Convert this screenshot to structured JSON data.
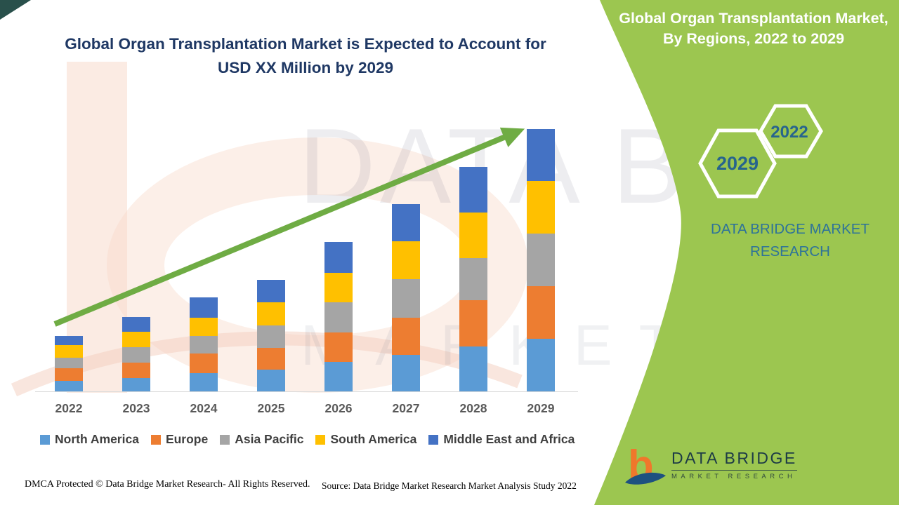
{
  "main_title": "Global Organ Transplantation Market is Expected to Account for USD XX Million by 2029",
  "sidebar": {
    "bg_color": "#9CC650",
    "title": "Global Organ Transplantation Market, By Regions, 2022 to 2029",
    "hexagons": [
      {
        "label": "2029"
      },
      {
        "label": "2022"
      }
    ],
    "brand_text": "DATA BRIDGE MARKET RESEARCH",
    "logo": {
      "name": "DATA BRIDGE",
      "subname": "MARKET RESEARCH"
    }
  },
  "watermark": {
    "line1": "DATA BRIDGE",
    "line2": "MARKET RESEARCH",
    "letter": "b"
  },
  "footer": {
    "dmca": "DMCA Protected © Data Bridge Market Research- All Rights Reserved.",
    "source": "Source: Data Bridge Market Research Market Analysis Study 2022"
  },
  "colors": {
    "sidebar_green": "#9CC650",
    "arrow_green": "#6FAC44",
    "title_navy": "#1F3864",
    "brand_teal": "#2E7399",
    "hex_year_blue": "#27648D",
    "logo_orange": "#F0772B",
    "logo_navy": "#1E5180",
    "axis_gray": "#D9D9D9",
    "xlabel_gray": "#595959",
    "legend_text_gray": "#3F3F3F"
  },
  "chart_data": {
    "type": "bar",
    "stacked": true,
    "title": "Global Organ Transplantation Market is Expected to Account for USD XX Million by 2029",
    "categories": [
      "2022",
      "2023",
      "2024",
      "2025",
      "2026",
      "2027",
      "2028",
      "2029"
    ],
    "series": [
      {
        "name": "North America",
        "color": "#5B9BD5",
        "values": [
          15,
          19,
          26,
          31,
          42,
          52,
          64,
          75
        ]
      },
      {
        "name": "Europe",
        "color": "#ED7D31",
        "values": [
          18,
          22,
          28,
          31,
          42,
          53,
          66,
          75
        ]
      },
      {
        "name": "Asia Pacific",
        "color": "#A5A5A5",
        "values": [
          15,
          22,
          25,
          32,
          43,
          55,
          60,
          75
        ]
      },
      {
        "name": "South America",
        "color": "#FFC000",
        "values": [
          18,
          22,
          26,
          33,
          42,
          54,
          65,
          75
        ]
      },
      {
        "name": "Middle East and Africa",
        "color": "#4472C4",
        "values": [
          13,
          21,
          29,
          32,
          44,
          53,
          65,
          74
        ]
      }
    ],
    "totals": [
      79,
      106,
      134,
      159,
      213,
      267,
      320,
      374
    ],
    "value_note": "relative units estimated from bar heights; y-axis is not labeled in the figure",
    "xlabel": "",
    "ylabel": "",
    "ylim": [
      0,
      400
    ],
    "grid": false,
    "legend_position": "bottom",
    "trend_arrow": true
  }
}
